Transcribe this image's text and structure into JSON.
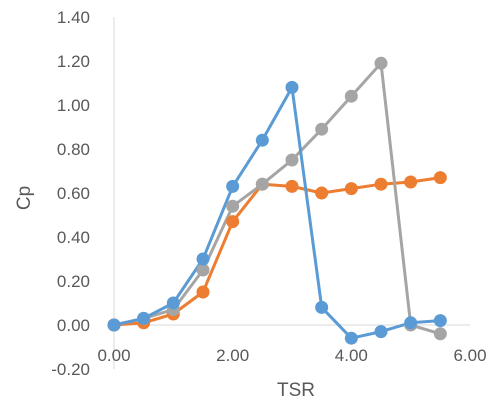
{
  "chart_data": {
    "type": "line",
    "title": "",
    "xlabel": "TSR",
    "ylabel": "Cp",
    "xlim": [
      0,
      6
    ],
    "ylim": [
      -0.2,
      1.4
    ],
    "x_ticks": [
      "0.00",
      "2.00",
      "4.00",
      "6.00"
    ],
    "y_ticks": [
      "-0.20",
      "0.00",
      "0.20",
      "0.40",
      "0.60",
      "0.80",
      "1.00",
      "1.20",
      "1.40"
    ],
    "grid": false,
    "legend": "none",
    "series": [
      {
        "color": "#ED7D31",
        "x": [
          0,
          0.5,
          1.0,
          1.5,
          2.0,
          2.5,
          3.0,
          3.5,
          4.0,
          4.5,
          5.0,
          5.5
        ],
        "y": [
          0.0,
          0.01,
          0.05,
          0.15,
          0.47,
          0.64,
          0.63,
          0.6,
          0.62,
          0.64,
          0.65,
          0.67
        ]
      },
      {
        "color": "#A5A5A5",
        "x": [
          0,
          0.5,
          1.0,
          1.5,
          2.0,
          2.5,
          3.0,
          3.5,
          4.0,
          4.5,
          5.0,
          5.5
        ],
        "y": [
          0.0,
          0.03,
          0.07,
          0.25,
          0.54,
          0.64,
          0.75,
          0.89,
          1.04,
          1.19,
          0.0,
          -0.04
        ]
      },
      {
        "color": "#5B9BD5",
        "x": [
          0,
          0.5,
          1.0,
          1.5,
          2.0,
          2.5,
          3.0,
          3.5,
          4.0,
          4.5,
          5.0,
          5.5
        ],
        "y": [
          0.0,
          0.03,
          0.1,
          0.3,
          0.63,
          0.84,
          1.08,
          0.08,
          -0.06,
          -0.03,
          0.01,
          0.02
        ]
      }
    ]
  }
}
